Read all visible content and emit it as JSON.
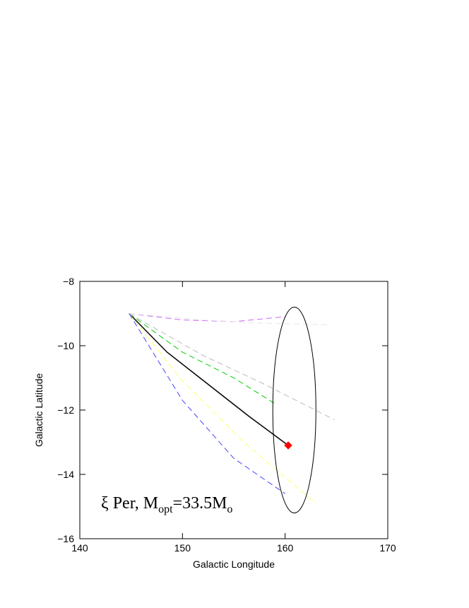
{
  "chart_data": {
    "type": "line",
    "title": "",
    "xlabel": "Galactic Longitude",
    "ylabel": "Galactic Latitude",
    "xlim": [
      140,
      170
    ],
    "ylim": [
      -16,
      -8
    ],
    "xticks": [
      140,
      150,
      160,
      170
    ],
    "yticks": [
      -16,
      -14,
      -12,
      -10,
      -8
    ],
    "grid": false,
    "annotation": {
      "star": "ξ Per, M",
      "sub1": "opt",
      "mid": "=33.5M",
      "sub2": "o"
    },
    "start_point": {
      "x": 144.8,
      "y": -9.0
    },
    "end_marker": {
      "x": 160.3,
      "y": -13.1,
      "color": "#ff0000",
      "shape": "diamond"
    },
    "ellipse": {
      "cx": 160.9,
      "cy": -12.0,
      "rx": 2.1,
      "ry": 3.2,
      "tilt_deg": 0,
      "color": "#000000"
    },
    "series": [
      {
        "style": "solid",
        "color": "#000000",
        "points": [
          [
            144.8,
            -9.0
          ],
          [
            148.5,
            -10.2
          ],
          [
            152.5,
            -11.2
          ],
          [
            156.5,
            -12.2
          ],
          [
            160.3,
            -13.1
          ]
        ]
      },
      {
        "style": "dashed",
        "color": "#cc66ff",
        "points": [
          [
            144.8,
            -9.0
          ],
          [
            150.0,
            -9.2
          ],
          [
            155.0,
            -9.25
          ],
          [
            160.0,
            -9.1
          ]
        ]
      },
      {
        "style": "dashed",
        "color": "#e6e6e6",
        "points": [
          [
            144.8,
            -9.0
          ],
          [
            152.0,
            -9.2
          ],
          [
            158.0,
            -9.3
          ],
          [
            164.5,
            -9.35
          ]
        ]
      },
      {
        "style": "dashed",
        "color": "#00cc00",
        "points": [
          [
            144.8,
            -9.0
          ],
          [
            150.0,
            -10.2
          ],
          [
            155.0,
            -11.0
          ],
          [
            159.0,
            -11.8
          ]
        ]
      },
      {
        "style": "dashed",
        "color": "#bbbbbb",
        "points": [
          [
            144.8,
            -9.0
          ],
          [
            152.0,
            -10.3
          ],
          [
            158.0,
            -11.2
          ],
          [
            164.8,
            -12.3
          ]
        ]
      },
      {
        "style": "dashed",
        "color": "#ffff66",
        "points": [
          [
            144.8,
            -9.0
          ],
          [
            150.0,
            -11.1
          ],
          [
            156.0,
            -13.0
          ],
          [
            163.0,
            -14.9
          ]
        ]
      },
      {
        "style": "dashed",
        "color": "#4444ff",
        "points": [
          [
            144.8,
            -9.0
          ],
          [
            150.0,
            -11.7
          ],
          [
            155.0,
            -13.5
          ],
          [
            160.0,
            -14.6
          ]
        ]
      }
    ]
  }
}
